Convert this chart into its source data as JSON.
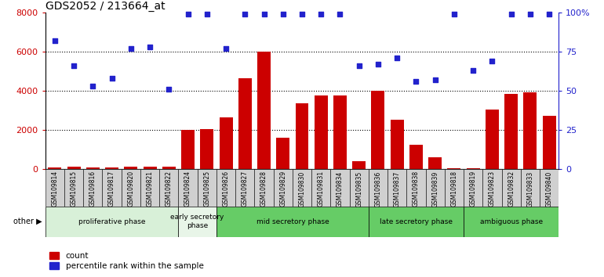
{
  "title": "GDS2052 / 213664_at",
  "samples": [
    "GSM109814",
    "GSM109815",
    "GSM109816",
    "GSM109817",
    "GSM109820",
    "GSM109821",
    "GSM109822",
    "GSM109824",
    "GSM109825",
    "GSM109826",
    "GSM109827",
    "GSM109828",
    "GSM109829",
    "GSM109830",
    "GSM109831",
    "GSM109834",
    "GSM109835",
    "GSM109836",
    "GSM109837",
    "GSM109838",
    "GSM109839",
    "GSM109818",
    "GSM109819",
    "GSM109823",
    "GSM109832",
    "GSM109833",
    "GSM109840"
  ],
  "counts": [
    80,
    100,
    90,
    60,
    100,
    120,
    130,
    2000,
    2050,
    2650,
    4650,
    6000,
    1600,
    3350,
    3750,
    3750,
    400,
    4000,
    2500,
    1250,
    600,
    50,
    50,
    3050,
    3850,
    3900,
    2700
  ],
  "percentiles": [
    82,
    66,
    53,
    58,
    77,
    78,
    51,
    99,
    99,
    77,
    99,
    99,
    99,
    99,
    99,
    99,
    66,
    67,
    71,
    56,
    57,
    99,
    63,
    69,
    99,
    99,
    99
  ],
  "phase_ranges": [
    [
      0,
      7
    ],
    [
      7,
      9
    ],
    [
      9,
      17
    ],
    [
      17,
      22
    ],
    [
      22,
      27
    ]
  ],
  "phase_names": [
    "proliferative phase",
    "early secretory\nphase",
    "mid secretory phase",
    "late secretory phase",
    "ambiguous phase"
  ],
  "phase_colors": [
    "#d8f0d8",
    "#e8f5e8",
    "#66cc66",
    "#66cc66",
    "#66cc66"
  ],
  "ylim_left": [
    0,
    8000
  ],
  "ylim_right": [
    0,
    100
  ],
  "bar_color": "#cc0000",
  "dot_color": "#2222cc",
  "grid_ticks_left": [
    0,
    2000,
    4000,
    6000,
    8000
  ],
  "grid_ticks_right": [
    0,
    25,
    50,
    75,
    100
  ],
  "other_label": "other",
  "legend": [
    "count",
    "percentile rank within the sample"
  ],
  "xtick_bg": "#d0d0d0"
}
